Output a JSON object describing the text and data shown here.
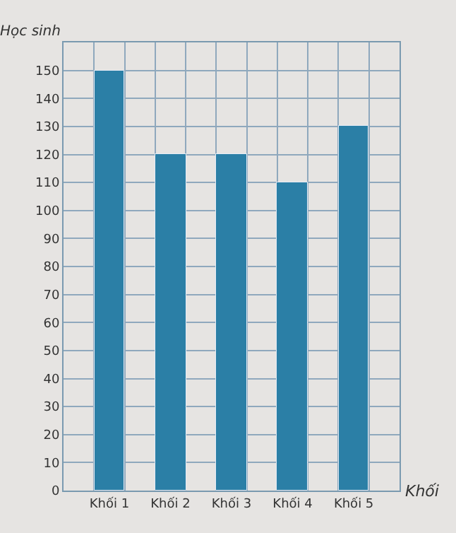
{
  "chart_data": {
    "type": "bar",
    "categories": [
      "Khối 1",
      "Khối 2",
      "Khối 3",
      "Khối 4",
      "Khối 5"
    ],
    "values": [
      150,
      120,
      120,
      110,
      130
    ],
    "color": "#2b7fa6",
    "xlabel": "Khối",
    "ylabel": "Học sinh",
    "ylim": [
      0,
      160
    ],
    "yticks": [
      0,
      10,
      20,
      30,
      40,
      50,
      60,
      70,
      80,
      90,
      100,
      110,
      120,
      130,
      140,
      150
    ],
    "grid": true
  }
}
